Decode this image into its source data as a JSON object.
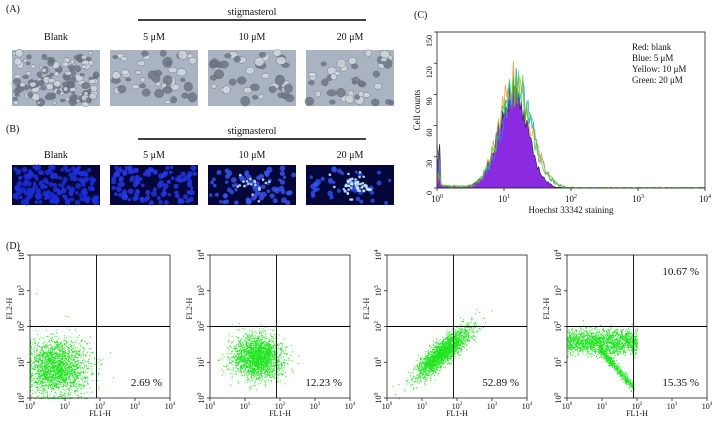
{
  "panels": {
    "A": {
      "label": "(A)",
      "group": "stigmasterol",
      "columns": [
        "Blank",
        "5 μM",
        "10 μM",
        "20 μM"
      ]
    },
    "B": {
      "label": "(B)",
      "group": "stigmasterol",
      "columns": [
        "Blank",
        "5 μM",
        "10 μM",
        "20 μM"
      ]
    },
    "C": {
      "label": "(C)",
      "ylabel": "Cell counts",
      "xlabel": "Hoechst 33342 staining",
      "yticks": [
        "0",
        "30",
        "60",
        "90",
        "120",
        "150"
      ],
      "tick_base": "10",
      "tick_exps": [
        "0",
        "1",
        "2",
        "3",
        "4"
      ],
      "legend": [
        "Red: blank",
        "Blue: 5 μM",
        "Yellow: 10 μM",
        "Green: 20 μM"
      ]
    },
    "D": {
      "label": "(D)",
      "xlabel": "FL1-H",
      "ylabel": "FL2-H",
      "tick_base": "10",
      "tick_exps": [
        "0",
        "1",
        "2",
        "3",
        "4"
      ],
      "plots": [
        {
          "lower_right": "2.69 %"
        },
        {
          "lower_right": "12.23 %"
        },
        {
          "lower_right": "52.89 %"
        },
        {
          "upper_right": "10.67 %",
          "lower_right": "15.35 %"
        }
      ]
    }
  }
}
